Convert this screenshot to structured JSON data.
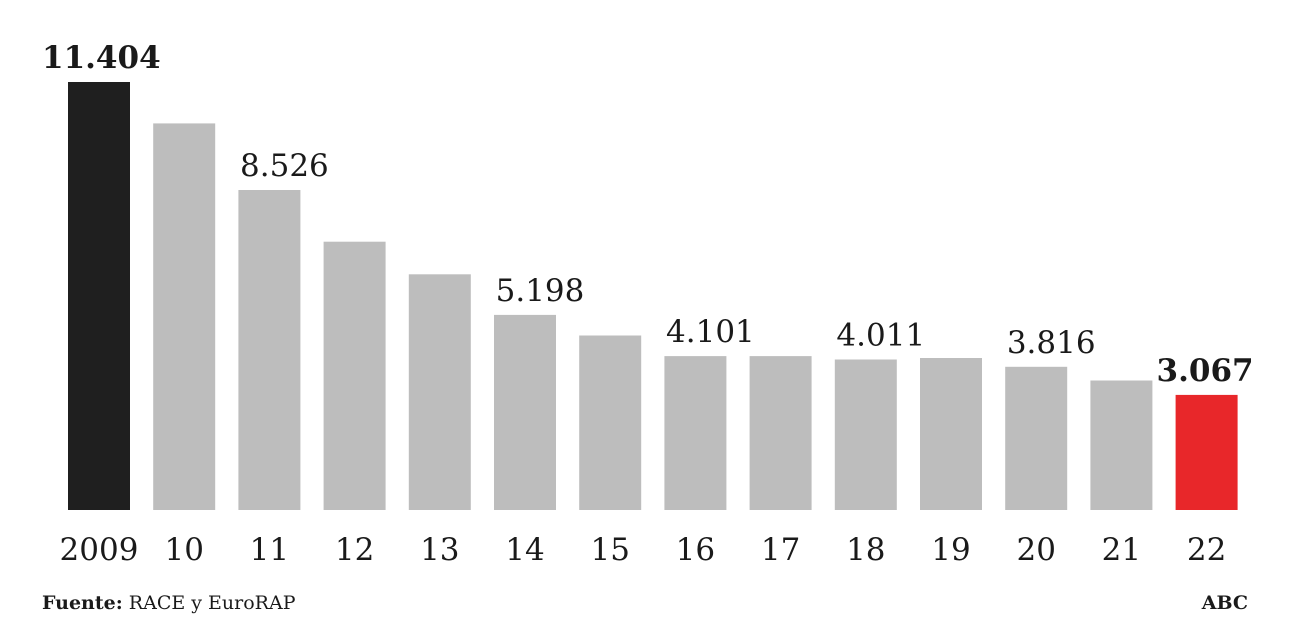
{
  "chart_data": {
    "type": "bar",
    "categories": [
      "2009",
      "10",
      "11",
      "12",
      "13",
      "14",
      "15",
      "16",
      "17",
      "18",
      "19",
      "20",
      "21",
      "22"
    ],
    "values": [
      11404,
      10300,
      8526,
      7150,
      6280,
      5198,
      4650,
      4101,
      4101,
      4011,
      4050,
      3816,
      3450,
      3067
    ],
    "data_labels": [
      {
        "index": 0,
        "text": "11.404",
        "bold": true
      },
      {
        "index": 2,
        "text": "8.526",
        "bold": false
      },
      {
        "index": 5,
        "text": "5.198",
        "bold": false
      },
      {
        "index": 7,
        "text": "4.101",
        "bold": false
      },
      {
        "index": 9,
        "text": "4.011",
        "bold": false
      },
      {
        "index": 11,
        "text": "3.816",
        "bold": false
      },
      {
        "index": 13,
        "text": "3.067",
        "bold": true
      }
    ],
    "colors": {
      "first": "#1f1f1f",
      "default": "#bdbdbd",
      "last": "#e8272a"
    },
    "ylim": [
      0,
      11404
    ],
    "grid": false,
    "title": "",
    "xlabel": "",
    "ylabel": ""
  },
  "footer": {
    "source_label": "Fuente:",
    "source_text": " RACE y EuroRAP",
    "credit": "ABC"
  }
}
